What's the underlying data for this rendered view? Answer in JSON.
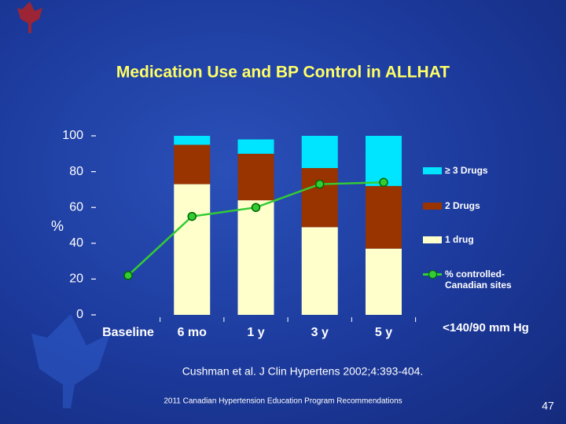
{
  "chart_data": {
    "type": "bar",
    "title": "Medication Use and BP Control in ALLHAT",
    "y_label": "%",
    "categories": [
      "Baseline",
      "6 mo",
      "1 y",
      "3 y",
      "5 y"
    ],
    "series": [
      {
        "name": "1 drug",
        "color": "#ffffcc",
        "values": [
          null,
          73,
          64,
          49,
          37
        ]
      },
      {
        "name": "2 Drugs",
        "color": "#993300",
        "values": [
          null,
          22,
          26,
          33,
          35
        ]
      },
      {
        "name": "≥ 3 Drugs",
        "color": "#00e5ff",
        "values": [
          null,
          5,
          8,
          18,
          28
        ]
      },
      {
        "name": "% controlled- Canadian sites",
        "color": "#33cc33",
        "type": "line",
        "values": [
          22,
          55,
          60,
          73,
          74
        ]
      }
    ],
    "ylim": [
      0,
      100
    ],
    "yticks": [
      0,
      20,
      40,
      60,
      80,
      100
    ],
    "annotation": "<140/90 mm Hg",
    "citation": "Cushman et al. J Clin Hypertens 2002;4:393-404.",
    "footer": "2011 Canadian Hypertension Education Program Recommendations",
    "page_number": "47"
  }
}
